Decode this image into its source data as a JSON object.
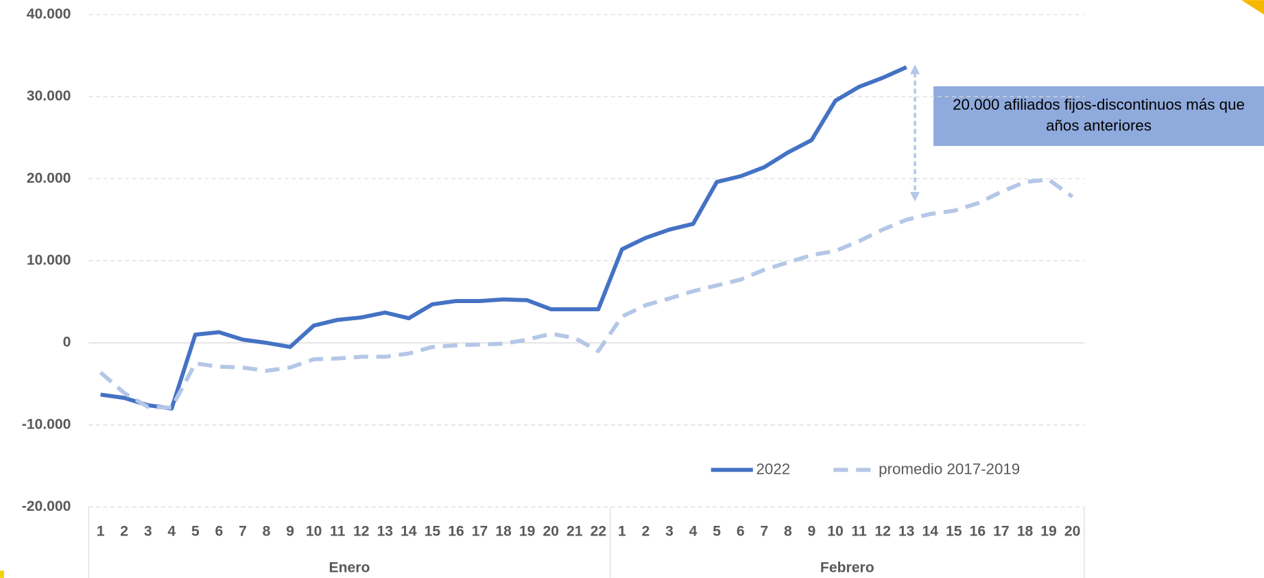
{
  "chart_data": {
    "type": "line",
    "category_groups": [
      {
        "label": "Enero",
        "categories": [
          "1",
          "2",
          "3",
          "4",
          "5",
          "6",
          "7",
          "8",
          "9",
          "10",
          "11",
          "12",
          "13",
          "14",
          "15",
          "16",
          "17",
          "18",
          "19",
          "20",
          "21",
          "22"
        ]
      },
      {
        "label": "Febrero",
        "categories": [
          "1",
          "2",
          "3",
          "4",
          "5",
          "6",
          "7",
          "8",
          "9",
          "10",
          "11",
          "12",
          "13",
          "14",
          "15",
          "16",
          "17",
          "18",
          "19",
          "20"
        ]
      }
    ],
    "series": [
      {
        "name": "2022",
        "color": "#4472c4",
        "dashed": false,
        "values": [
          -6300,
          -6700,
          -7600,
          -8000,
          1000,
          1300,
          400,
          0,
          -500,
          2100,
          2800,
          3100,
          3700,
          3000,
          4700,
          5100,
          5100,
          5300,
          5200,
          4100,
          4100,
          4100,
          11400,
          12800,
          13800,
          14500,
          19600,
          20300,
          21400,
          23200,
          24700,
          29500,
          31200,
          32300,
          33600,
          null,
          null,
          null,
          null,
          null,
          null,
          null
        ]
      },
      {
        "name": "promedio 2017-2019",
        "color": "#b4c7e7",
        "dashed": true,
        "values": [
          -3600,
          -6100,
          -7800,
          -7900,
          -2500,
          -2900,
          -3000,
          -3400,
          -3000,
          -2000,
          -1900,
          -1700,
          -1700,
          -1300,
          -500,
          -300,
          -200,
          -100,
          400,
          1100,
          600,
          -1000,
          3200,
          4600,
          5400,
          6300,
          7000,
          7700,
          8900,
          9800,
          10700,
          11200,
          12400,
          13800,
          15000,
          15700,
          16100,
          17000,
          18400,
          19600,
          19900,
          17800
        ]
      }
    ],
    "ylim": [
      -20000,
      40000
    ],
    "yticks": [
      {
        "value": -20000,
        "label": "-20.000"
      },
      {
        "value": -10000,
        "label": "-10.000"
      },
      0,
      {
        "value": 10000,
        "label": "10.000"
      },
      {
        "value": 20000,
        "label": "20.000"
      },
      {
        "value": 30000,
        "label": "30.000"
      },
      {
        "value": 40000,
        "label": "40.000"
      }
    ],
    "grid": true,
    "legend": "bottom-right",
    "annotation": "20.000 afiliados fijos-discontinuos más que años anteriores"
  }
}
